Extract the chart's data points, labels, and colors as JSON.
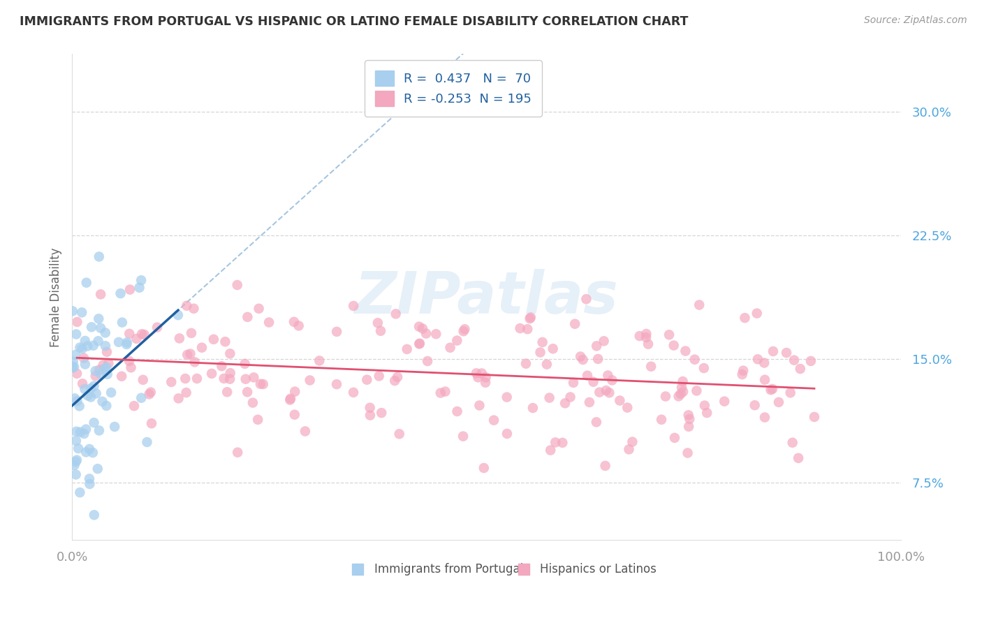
{
  "title": "IMMIGRANTS FROM PORTUGAL VS HISPANIC OR LATINO FEMALE DISABILITY CORRELATION CHART",
  "source": "Source: ZipAtlas.com",
  "ylabel": "Female Disability",
  "xlim": [
    0.0,
    1.0
  ],
  "ylim": [
    0.04,
    0.335
  ],
  "yticks": [
    0.075,
    0.15,
    0.225,
    0.3
  ],
  "ytick_labels": [
    "7.5%",
    "15.0%",
    "22.5%",
    "30.0%"
  ],
  "xtick_labels_positions": [
    0.0,
    1.0
  ],
  "xtick_labels": [
    "0.0%",
    "100.0%"
  ],
  "blue_R": 0.437,
  "blue_N": 70,
  "pink_R": -0.253,
  "pink_N": 195,
  "blue_color": "#a8d0ee",
  "pink_color": "#f4a8c0",
  "blue_line_color": "#2060a0",
  "pink_line_color": "#e05070",
  "blue_dash_color": "#90b8d8",
  "legend_label_blue": "Immigrants from Portugal",
  "legend_label_pink": "Hispanics or Latinos",
  "background_color": "#ffffff",
  "grid_color": "#cccccc",
  "title_color": "#333333",
  "watermark_text": "ZIPatlas",
  "tick_color_right": "#4da6e0",
  "tick_color_bottom": "#999999"
}
